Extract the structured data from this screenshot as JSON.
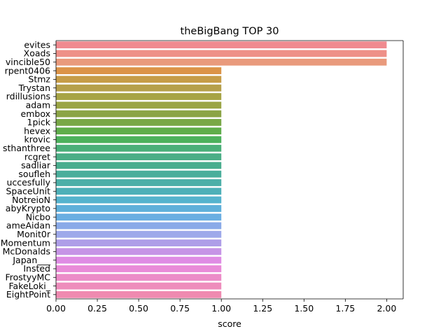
{
  "chart_data": {
    "type": "bar",
    "orientation": "horizontal",
    "title": "theBigBang TOP 30",
    "xlabel": "score",
    "ylabel": "",
    "xlim": [
      0,
      2.1
    ],
    "xticks": [
      0.0,
      0.25,
      0.5,
      0.75,
      1.0,
      1.25,
      1.5,
      1.75,
      2.0
    ],
    "xtick_labels": [
      "0.00",
      "0.25",
      "0.50",
      "0.75",
      "1.00",
      "1.25",
      "1.50",
      "1.75",
      "2.00"
    ],
    "grid": false,
    "legend": "none",
    "categories": [
      "evites",
      "Xoads",
      "vincible50",
      "rpent0406",
      "Stmz",
      "Trystan",
      "rdillusions",
      "adam",
      "embox",
      "1pick",
      "hevex",
      "krovic",
      "sthanthree",
      "rcgret",
      "sadliar",
      "soufleh",
      "uccesfully",
      "SpaceUnit",
      "NotreioN",
      "abyKrypto",
      "Nicbo",
      "ameAidan",
      "Monit0r",
      "Momentum",
      "McDonalds",
      "Japan___",
      "Insted",
      "FrostyyMC",
      "FakeLoki_",
      "EightPoint"
    ],
    "values": [
      2,
      2,
      2,
      1,
      1,
      1,
      1,
      1,
      1,
      1,
      1,
      1,
      1,
      1,
      1,
      1,
      1,
      1,
      1,
      1,
      1,
      1,
      1,
      1,
      1,
      1,
      1,
      1,
      1,
      1
    ],
    "colors": [
      "#f08a8f",
      "#ee9088",
      "#e99a7c",
      "#dc9347",
      "#c69c47",
      "#b6a04b",
      "#a7a445",
      "#9ba545",
      "#8ba445",
      "#79a847",
      "#5fad4b",
      "#4cb15c",
      "#4aaf79",
      "#4bae86",
      "#49ad8e",
      "#4aae9b",
      "#4cafa8",
      "#4db0b8",
      "#55b3cd",
      "#5fb0da",
      "#6aaee2",
      "#8aaae8",
      "#9ea9ea",
      "#ae9ee8",
      "#c694e6",
      "#df8ce4",
      "#e98bd8",
      "#ec8cc8",
      "#ee8dbc",
      "#ef8ab0"
    ]
  }
}
